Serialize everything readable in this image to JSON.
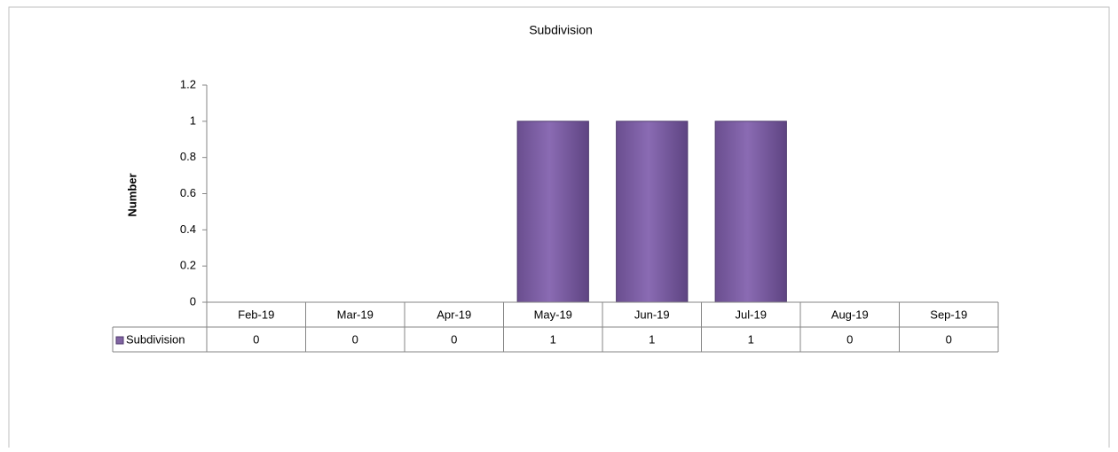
{
  "chart_data": {
    "type": "bar",
    "title": "Subdivision",
    "ylabel": "Number",
    "categories": [
      "Feb-19",
      "Mar-19",
      "Apr-19",
      "May-19",
      "Jun-19",
      "Jul-19",
      "Aug-19",
      "Sep-19"
    ],
    "series": [
      {
        "name": "Subdivision",
        "color": "#8064a2",
        "values": [
          0,
          0,
          0,
          1,
          1,
          1,
          0,
          0
        ]
      }
    ],
    "ylim": [
      0,
      1.2
    ],
    "yticks": [
      0,
      0.2,
      0.4,
      0.6,
      0.8,
      1,
      1.2
    ],
    "grid": false,
    "data_table": true
  }
}
